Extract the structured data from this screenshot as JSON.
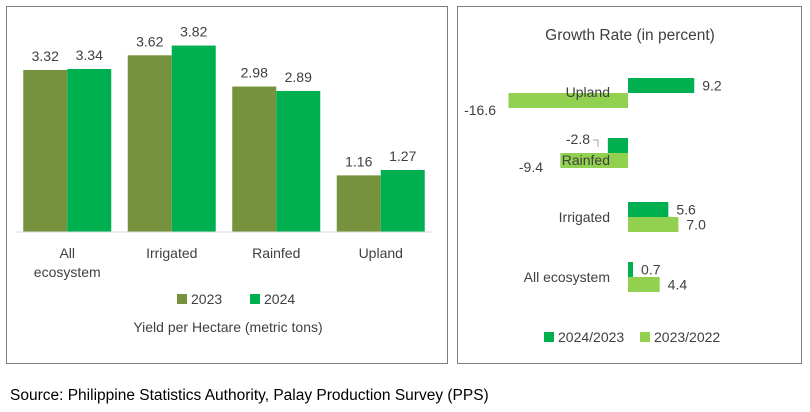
{
  "chart_data": [
    {
      "type": "bar",
      "title": "Yield per Hectare (metric tons)",
      "categories": [
        "All ecosystem",
        "Irrigated",
        "Rainfed",
        "Upland"
      ],
      "series": [
        {
          "name": "2023",
          "values": [
            3.32,
            3.62,
            2.98,
            1.16
          ],
          "value_labels": [
            "3.32",
            "3.62",
            "2.98",
            "1.16"
          ],
          "color": "#76923c"
        },
        {
          "name": "2024",
          "values": [
            3.34,
            3.82,
            2.89,
            1.27
          ],
          "value_labels": [
            "3.34",
            "3.82",
            "2.89",
            "1.27"
          ],
          "color": "#00b050"
        }
      ],
      "ylim": [
        0,
        4.2
      ],
      "orientation": "vertical",
      "grid": false,
      "legend": "bottom"
    },
    {
      "type": "bar",
      "orientation": "horizontal",
      "title": "Growth Rate (in percent)",
      "categories": [
        "Upland",
        "Rainfed",
        "Irrigated",
        "All ecosystem"
      ],
      "series": [
        {
          "name": "2024/2023",
          "values": [
            9.2,
            -2.8,
            5.6,
            0.7
          ],
          "value_labels": [
            "9.2",
            "-2.8",
            "5.6",
            "0.7"
          ],
          "color": "#00b050"
        },
        {
          "name": "2023/2022",
          "values": [
            -16.6,
            -9.4,
            7.0,
            4.4
          ],
          "value_labels": [
            "-16.6",
            "-9.4",
            "7.0",
            "4.4"
          ],
          "color": "#92d050"
        }
      ],
      "xlim": [
        -17,
        12
      ],
      "grid": false,
      "legend": "bottom"
    }
  ],
  "source": "Source: Philippine Statistics Authority, Palay Production Survey (PPS)"
}
